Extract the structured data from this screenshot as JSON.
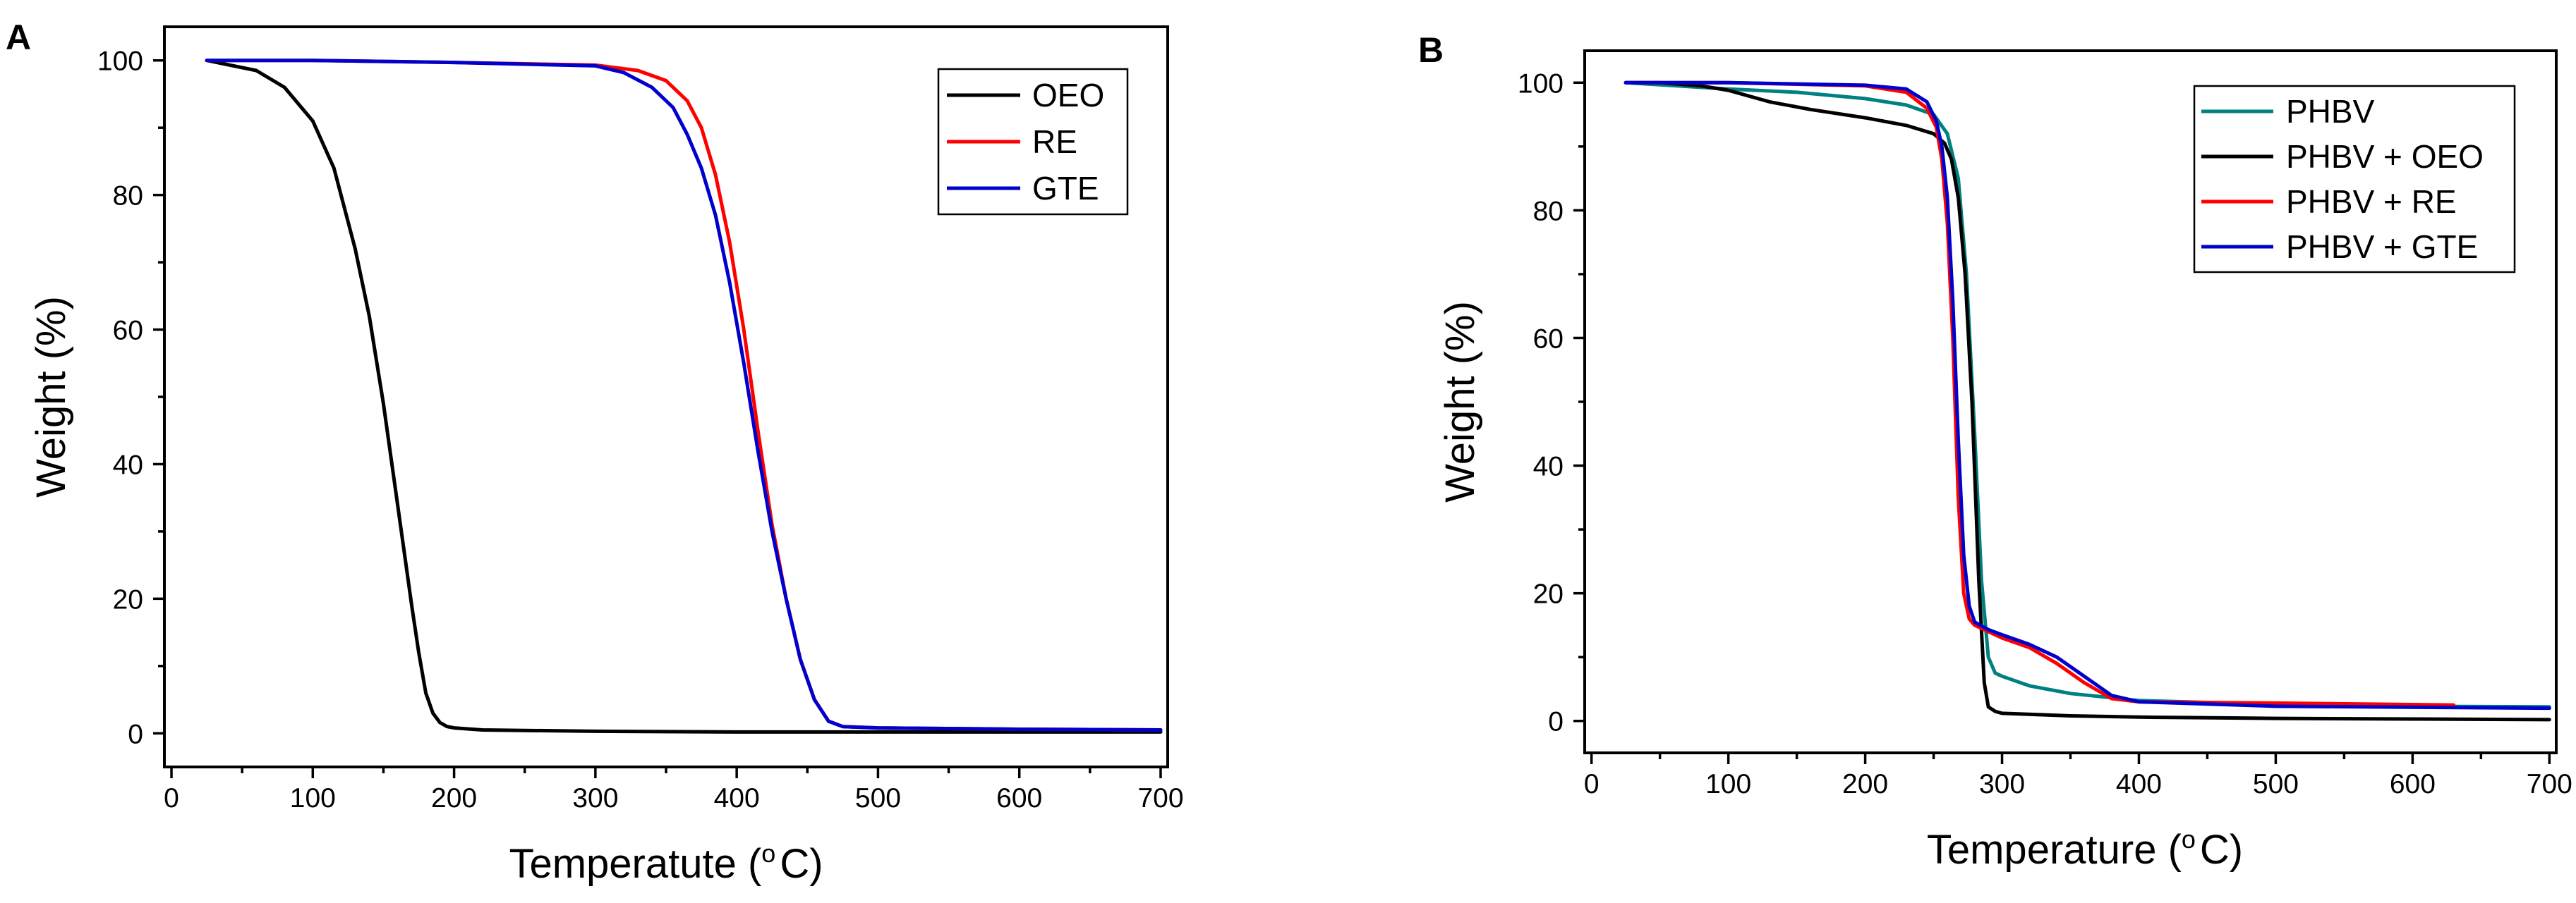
{
  "chart_data": [
    {
      "panel": "A",
      "type": "line",
      "xlabel": "Temperatute (",
      "xlabel_sup": "o",
      "xlabel_unit": "C)",
      "ylabel": "Weight (%)",
      "xlim": [
        -5,
        705
      ],
      "ylim": [
        -5,
        105
      ],
      "xticks": [
        0,
        100,
        200,
        300,
        400,
        500,
        600,
        700
      ],
      "yticks": [
        0,
        20,
        40,
        60,
        80,
        100
      ],
      "legend_position": "top-right",
      "series": [
        {
          "name": "OEO",
          "color": "#000000",
          "x": [
            25,
            60,
            80,
            100,
            115,
            130,
            140,
            150,
            160,
            170,
            175,
            180,
            185,
            190,
            195,
            200,
            220,
            300,
            400,
            500,
            600,
            700
          ],
          "y": [
            100,
            98.5,
            96,
            91,
            84,
            72,
            62,
            49,
            34,
            19,
            12,
            6,
            3,
            1.6,
            1.0,
            0.8,
            0.5,
            0.3,
            0.2,
            0.2,
            0.2,
            0.2
          ]
        },
        {
          "name": "RE",
          "color": "#ff0000",
          "x": [
            25,
            100,
            200,
            300,
            330,
            350,
            365,
            375,
            385,
            395,
            405,
            415,
            425,
            435,
            445,
            455,
            465,
            475,
            500,
            600,
            700
          ],
          "y": [
            100,
            100,
            99.7,
            99.3,
            98.5,
            97,
            94,
            90,
            83,
            73,
            60,
            45,
            31,
            20,
            11,
            5,
            1.8,
            1.0,
            0.8,
            0.6,
            0.5
          ]
        },
        {
          "name": "GTE",
          "color": "#0000cc",
          "x": [
            25,
            100,
            200,
            300,
            320,
            340,
            355,
            365,
            375,
            385,
            395,
            405,
            415,
            425,
            435,
            445,
            455,
            465,
            475,
            500,
            600,
            700
          ],
          "y": [
            100,
            100,
            99.7,
            99.2,
            98.2,
            96,
            93,
            89,
            84,
            77,
            67,
            55,
            42,
            30,
            20,
            11,
            5,
            1.8,
            1.0,
            0.8,
            0.6,
            0.5
          ]
        }
      ]
    },
    {
      "panel": "B",
      "type": "line",
      "xlabel": "Temperature (",
      "xlabel_sup": "o",
      "xlabel_unit": "C)",
      "ylabel": "Weight (%)",
      "xlim": [
        -5,
        705
      ],
      "ylim": [
        -5,
        105
      ],
      "xticks": [
        0,
        100,
        200,
        300,
        400,
        500,
        600,
        700
      ],
      "yticks": [
        0,
        20,
        40,
        60,
        80,
        100
      ],
      "legend_position": "top-right",
      "series": [
        {
          "name": "PHBV",
          "color": "#008080",
          "x": [
            25,
            100,
            150,
            200,
            230,
            250,
            260,
            268,
            274,
            280,
            285,
            290,
            295,
            300,
            320,
            350,
            400,
            500,
            600,
            700
          ],
          "y": [
            100,
            99,
            98.5,
            97.5,
            96.5,
            95,
            92,
            85,
            70,
            45,
            22,
            10,
            7.5,
            7,
            5.5,
            4.3,
            3.2,
            2.6,
            2.3,
            2.2
          ]
        },
        {
          "name": "PHBV + OEO",
          "color": "#000000",
          "x": [
            25,
            50,
            80,
            100,
            130,
            160,
            200,
            230,
            250,
            258,
            263,
            268,
            273,
            278,
            283,
            287,
            290,
            295,
            300,
            350,
            400,
            500,
            600,
            700
          ],
          "y": [
            100,
            100,
            99.5,
            98.8,
            97,
            95.8,
            94.5,
            93.3,
            92,
            90.5,
            88,
            82,
            70,
            50,
            22,
            6,
            2.2,
            1.5,
            1.2,
            0.8,
            0.6,
            0.4,
            0.3,
            0.2
          ]
        },
        {
          "name": "PHBV + RE",
          "color": "#ff0000",
          "x": [
            25,
            100,
            200,
            230,
            245,
            252,
            256,
            260,
            264,
            268,
            272,
            276,
            280,
            290,
            300,
            320,
            340,
            360,
            380,
            400,
            500,
            630
          ],
          "y": [
            100,
            100,
            99.5,
            98.5,
            96,
            93,
            88,
            78,
            60,
            35,
            20,
            16,
            15,
            14,
            13,
            11.5,
            9,
            6,
            3.5,
            3,
            2.8,
            2.5
          ]
        },
        {
          "name": "PHBV + GTE",
          "color": "#0000cc",
          "x": [
            25,
            100,
            200,
            230,
            245,
            252,
            256,
            260,
            264,
            268,
            272,
            276,
            280,
            290,
            300,
            320,
            340,
            360,
            380,
            400,
            500,
            700
          ],
          "y": [
            100,
            100,
            99.6,
            99,
            97,
            94,
            90,
            82,
            66,
            44,
            26,
            18,
            15.5,
            14.3,
            13.5,
            12,
            10,
            7,
            4,
            3,
            2.3,
            2.0
          ]
        }
      ]
    }
  ]
}
